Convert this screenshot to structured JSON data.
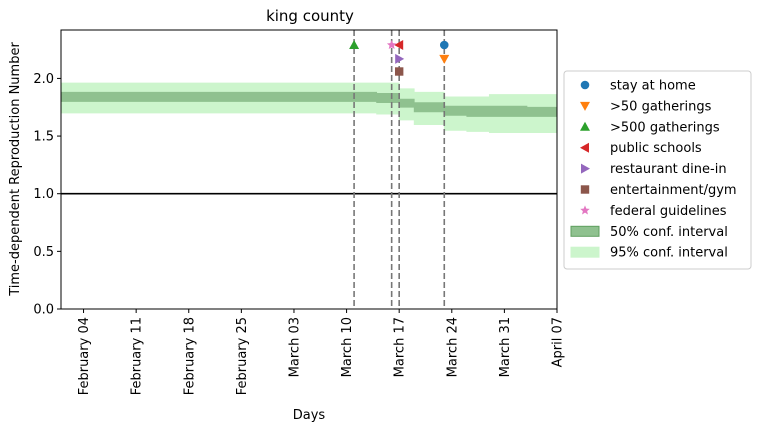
{
  "chart_data": {
    "type": "area",
    "title": "king county",
    "xlabel": "Days",
    "ylabel": "Time-dependent Reproduction Number",
    "ylim": [
      0,
      2.42
    ],
    "xlim": [
      "2020-02-01",
      "2020-04-07"
    ],
    "x_ticks": [
      {
        "date": "2020-02-04",
        "label": "February 04"
      },
      {
        "date": "2020-02-11",
        "label": "February 11"
      },
      {
        "date": "2020-02-18",
        "label": "February 18"
      },
      {
        "date": "2020-02-25",
        "label": "February 25"
      },
      {
        "date": "2020-03-03",
        "label": "March 03"
      },
      {
        "date": "2020-03-10",
        "label": "March 10"
      },
      {
        "date": "2020-03-17",
        "label": "March 17"
      },
      {
        "date": "2020-03-24",
        "label": "March 24"
      },
      {
        "date": "2020-03-31",
        "label": "March 31"
      },
      {
        "date": "2020-04-07",
        "label": "April 07"
      }
    ],
    "y_ticks": [
      0.0,
      0.5,
      1.0,
      1.5,
      2.0
    ],
    "y_tick_labels": [
      "0.0",
      "0.5",
      "1.0",
      "1.5",
      "2.0"
    ],
    "reference_line": {
      "y": 1.0,
      "color": "#000000"
    },
    "bands": [
      {
        "name": "95% conf. interval",
        "color": "#ccf5cc",
        "x": [
          "2020-02-01",
          "2020-03-11",
          "2020-03-14",
          "2020-03-17",
          "2020-03-19",
          "2020-03-21",
          "2020-03-23",
          "2020-03-26",
          "2020-03-29",
          "2020-04-03",
          "2020-04-07"
        ],
        "lower": [
          1.7,
          1.7,
          1.69,
          1.64,
          1.6,
          1.6,
          1.55,
          1.54,
          1.53,
          1.53,
          1.53
        ],
        "upper": [
          1.96,
          1.96,
          1.96,
          1.91,
          1.88,
          1.88,
          1.84,
          1.84,
          1.86,
          1.86,
          1.86
        ]
      },
      {
        "name": "50% conf. interval",
        "color": "#8fc18f",
        "x": [
          "2020-02-01",
          "2020-03-11",
          "2020-03-14",
          "2020-03-17",
          "2020-03-19",
          "2020-03-21",
          "2020-03-23",
          "2020-03-26",
          "2020-03-29",
          "2020-04-03",
          "2020-04-07"
        ],
        "lower": [
          1.8,
          1.8,
          1.79,
          1.75,
          1.71,
          1.71,
          1.68,
          1.67,
          1.67,
          1.67,
          1.67
        ],
        "upper": [
          1.88,
          1.88,
          1.87,
          1.82,
          1.79,
          1.79,
          1.76,
          1.76,
          1.76,
          1.75,
          1.75
        ]
      }
    ],
    "interventions": [
      {
        "name": "stay at home",
        "date": "2020-03-23",
        "y": 2.29,
        "marker": "circle",
        "color": "#1f77b4"
      },
      {
        "name": ">50 gatherings",
        "date": "2020-03-23",
        "y": 2.17,
        "marker": "triangle-down",
        "color": "#ff7f0e"
      },
      {
        "name": ">500 gatherings",
        "date": "2020-03-11",
        "y": 2.29,
        "marker": "triangle-up",
        "color": "#2ca02c"
      },
      {
        "name": "public schools",
        "date": "2020-03-17",
        "y": 2.29,
        "marker": "triangle-left",
        "color": "#d62728"
      },
      {
        "name": "restaurant dine-in",
        "date": "2020-03-17",
        "y": 2.17,
        "marker": "triangle-right",
        "color": "#9467bd"
      },
      {
        "name": "entertainment/gym",
        "date": "2020-03-17",
        "y": 2.06,
        "marker": "square",
        "color": "#8c564b"
      },
      {
        "name": "federal guidelines",
        "date": "2020-03-16",
        "y": 2.29,
        "marker": "star",
        "color": "#e377c2"
      }
    ],
    "vlines": [
      "2020-03-11",
      "2020-03-16",
      "2020-03-17",
      "2020-03-23"
    ],
    "legend": {
      "placement": "right",
      "entries": [
        {
          "label": "stay at home",
          "marker": "circle",
          "color": "#1f77b4"
        },
        {
          "label": ">50 gatherings",
          "marker": "triangle-down",
          "color": "#ff7f0e"
        },
        {
          "label": ">500 gatherings",
          "marker": "triangle-up",
          "color": "#2ca02c"
        },
        {
          "label": "public schools",
          "marker": "triangle-left",
          "color": "#d62728"
        },
        {
          "label": "restaurant dine-in",
          "marker": "triangle-right",
          "color": "#9467bd"
        },
        {
          "label": "entertainment/gym",
          "marker": "square",
          "color": "#8c564b"
        },
        {
          "label": "federal guidelines",
          "marker": "star",
          "color": "#e377c2"
        },
        {
          "label": "50% conf. interval",
          "marker": "patch",
          "color": "#8fc18f",
          "edge": "#5f9f5f"
        },
        {
          "label": "95% conf. interval",
          "marker": "patch",
          "color": "#ccf5cc",
          "edge": "#ccf5cc"
        }
      ]
    }
  }
}
